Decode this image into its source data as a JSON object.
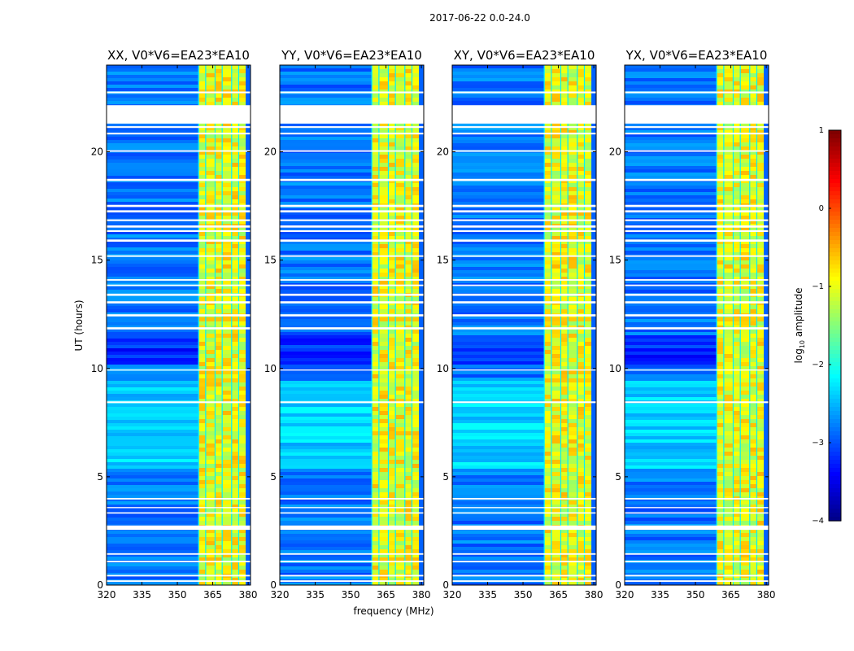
{
  "suptitle": "2017-06-22 0.0-24.0",
  "xlabel": "frequency (MHz)",
  "ylabel": "UT (hours)",
  "colorbar": {
    "label_prefix": "log",
    "label_sub": "10",
    "label_suffix": " amplitude",
    "ticks": [
      1,
      0,
      -1,
      -2,
      -3,
      -4
    ],
    "tick_labels": [
      "1",
      "0",
      "−1",
      "−2",
      "−3",
      "−4"
    ],
    "colormap": "jet"
  },
  "chart_data": {
    "type": "heatmap",
    "colormap": "jet",
    "value_label": "log10 amplitude",
    "vlim": [
      -4,
      1
    ],
    "xlim": [
      320,
      381
    ],
    "ylim": [
      0,
      24
    ],
    "xticks": [
      320,
      335,
      350,
      365,
      380
    ],
    "xtick_labels": [
      "320",
      "335",
      "350",
      "365",
      "380"
    ],
    "yticks": [
      0,
      5,
      10,
      15,
      20
    ],
    "ytick_labels": [
      "0",
      "5",
      "10",
      "15",
      "20"
    ],
    "panels": [
      {
        "title": "XX, V0*V6=EA23*EA10"
      },
      {
        "title": "YY, V0*V6=EA23*EA10"
      },
      {
        "title": "XY, V0*V6=EA23*EA10"
      },
      {
        "title": "YX, V0*V6=EA23*EA10"
      }
    ],
    "bright_bands_mhz": [
      [
        359,
        362
      ],
      [
        362,
        366
      ],
      [
        366,
        369
      ],
      [
        369,
        373
      ],
      [
        373,
        376
      ],
      [
        376,
        379
      ]
    ],
    "flagged_ut_hours": [
      [
        0.15,
        0.22
      ],
      [
        0.4,
        0.47
      ],
      [
        1.05,
        1.12
      ],
      [
        1.4,
        1.47
      ],
      [
        2.55,
        2.75
      ],
      [
        3.3,
        3.36
      ],
      [
        3.55,
        3.6
      ],
      [
        3.95,
        4.02
      ],
      [
        8.4,
        8.48
      ],
      [
        9.9,
        9.95
      ],
      [
        11.8,
        11.9
      ],
      [
        12.4,
        12.5
      ],
      [
        13.0,
        13.1
      ],
      [
        13.35,
        13.45
      ],
      [
        13.8,
        13.87
      ],
      [
        14.05,
        14.12
      ],
      [
        15.15,
        15.22
      ],
      [
        15.85,
        15.95
      ],
      [
        16.3,
        16.38
      ],
      [
        16.5,
        16.6
      ],
      [
        16.8,
        16.88
      ],
      [
        17.2,
        17.3
      ],
      [
        17.45,
        17.55
      ],
      [
        18.65,
        18.75
      ],
      [
        20.0,
        20.07
      ],
      [
        20.8,
        20.88
      ],
      [
        21.1,
        21.18
      ],
      [
        21.3,
        22.15
      ],
      [
        22.7,
        22.78
      ]
    ],
    "background_level": -2.8,
    "band_level": -1.0
  }
}
